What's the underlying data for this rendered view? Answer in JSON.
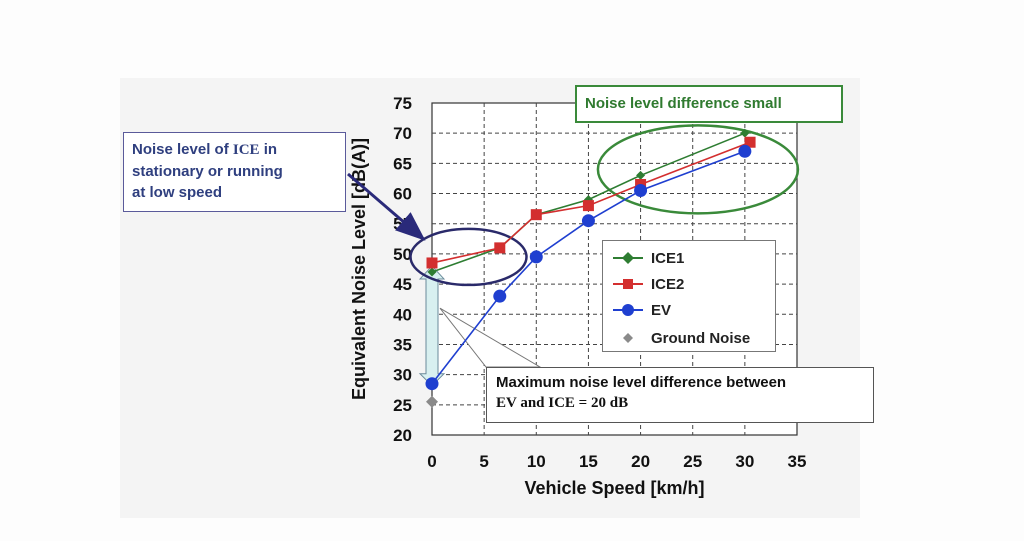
{
  "chart_data": {
    "type": "line",
    "xlabel": "Vehicle Speed  [km/h]",
    "ylabel": "Equivalent Noise Level  [dB(A)]",
    "xlim": [
      0,
      35
    ],
    "ylim": [
      20,
      75
    ],
    "x_ticks": [
      0,
      5,
      10,
      15,
      20,
      25,
      30,
      35
    ],
    "y_ticks": [
      20,
      25,
      30,
      35,
      40,
      45,
      50,
      55,
      60,
      65,
      70,
      75
    ],
    "grid": true,
    "legend_position": "right-middle",
    "series": [
      {
        "name": "ICE1",
        "color": "#2e7d32",
        "marker": "diamond",
        "points": [
          [
            0,
            47
          ],
          [
            6.5,
            51
          ],
          [
            10,
            56.5
          ],
          [
            15,
            59
          ],
          [
            20,
            63
          ],
          [
            30,
            70
          ]
        ]
      },
      {
        "name": "ICE2",
        "color": "#d32f2f",
        "marker": "square",
        "points": [
          [
            0,
            48.5
          ],
          [
            6.5,
            51
          ],
          [
            10,
            56.5
          ],
          [
            15,
            58
          ],
          [
            20,
            61.5
          ],
          [
            30.5,
            68.5
          ]
        ]
      },
      {
        "name": "EV",
        "color": "#1f3fd0",
        "marker": "circle",
        "points": [
          [
            0,
            28.5
          ],
          [
            6.5,
            43
          ],
          [
            10,
            49.5
          ],
          [
            15,
            55.5
          ],
          [
            20,
            60.5
          ],
          [
            30,
            67
          ]
        ]
      },
      {
        "name": "Ground Noise",
        "color": "#8a8a8a",
        "marker": "diamond",
        "points": [
          [
            0,
            25.5
          ]
        ]
      }
    ],
    "annotations": {
      "ice_low_speed": {
        "line1": "Noise level of ",
        "ice": "ICE",
        "line1b": " in",
        "line2": "stationary or running",
        "line3": "at low speed"
      },
      "small_difference": "Noise level difference small",
      "max_difference": {
        "line1": "Maximum noise level difference between",
        "line2": "EV and ICE = 20 dB"
      }
    }
  }
}
